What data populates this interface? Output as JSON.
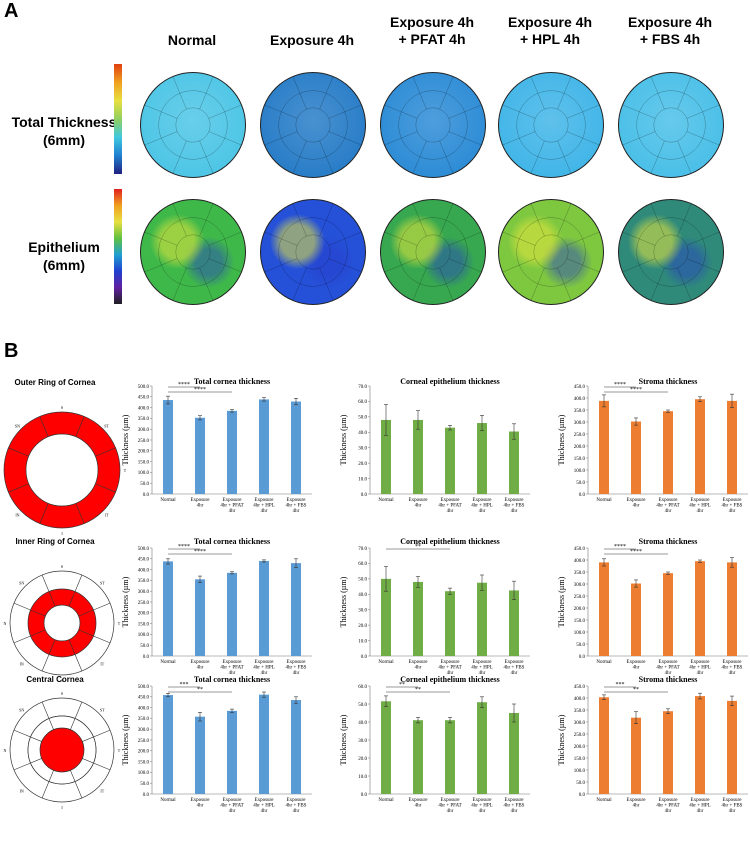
{
  "panel_a": {
    "letter": "A",
    "columns": [
      "Normal",
      "Exposure 4h",
      "Exposure 4h\n+ PFAT 4h",
      "Exposure 4h\n+ HPL 4h",
      "Exposure 4h\n+ FBS 4h"
    ],
    "rows": [
      "Total Thickness\n(6mm)",
      "Epithelium\n(6mm)"
    ],
    "map_colors": {
      "thickness": [
        "#4fc6e6",
        "#2a7ec8",
        "#2f8dd6",
        "#43b6e8",
        "#4cc0e8"
      ],
      "epithelium": [
        "#3fb84a",
        "#2550d8",
        "#37a84f",
        "#7ec840",
        "#2f8a7a"
      ]
    }
  },
  "panel_b": {
    "letter": "B",
    "ring_titles": [
      "Outer Ring of Cornea",
      "Inner Ring of Cornea",
      "Central Cornea"
    ],
    "sector_labels": [
      "S",
      "ST",
      "T",
      "IT",
      "I",
      "IN",
      "N",
      "SN"
    ],
    "colors": {
      "total": "#5b9bd5",
      "epithelium": "#70ad47",
      "stroma": "#ed7d31",
      "fill": "#ff0000"
    }
  },
  "chart_data": [
    {
      "type": "bar",
      "title": "Total cornea thickness",
      "ylabel": "Thickness (µm)",
      "ylim": [
        0,
        500
      ],
      "yticks": [
        "0.0",
        "50.0",
        "100.0",
        "150.0",
        "200.0",
        "250.0",
        "300.0",
        "350.0",
        "400.0",
        "450.0",
        "500.0"
      ],
      "categories": [
        "Normal",
        "Exposure 4hr",
        "Exposure 4hr + PFAT 4hr",
        "Exposure 4hr + HPL 4hr",
        "Exposure 4hr + FBS 4hr"
      ],
      "values": [
        435,
        353,
        385,
        438,
        428
      ],
      "errors": [
        18,
        10,
        6,
        8,
        15
      ],
      "significance": [
        {
          "from": 0,
          "to": 1,
          "label": "****"
        },
        {
          "from": 0,
          "to": 2,
          "label": "****"
        }
      ]
    },
    {
      "type": "bar",
      "title": "Corneal epithelium thickness",
      "ylabel": "Thickness (µm)",
      "ylim": [
        0,
        70
      ],
      "yticks": [
        "0.0",
        "10.0",
        "20.0",
        "30.0",
        "40.0",
        "50.0",
        "60.0",
        "70.0"
      ],
      "categories": [
        "Normal",
        "Exposure 4hr",
        "Exposure 4hr + PFAT 4hr",
        "Exposure 4hr + HPL 4hr",
        "Exposure 4hr + FBS 4hr"
      ],
      "values": [
        48,
        48,
        43,
        46,
        40.5
      ],
      "errors": [
        10,
        6,
        1.5,
        5,
        5
      ],
      "significance": []
    },
    {
      "type": "bar",
      "title": "Stroma thickness",
      "ylabel": "Thickness (µm)",
      "ylim": [
        0,
        450
      ],
      "yticks": [
        "0.0",
        "50.0",
        "100.0",
        "150.0",
        "200.0",
        "250.0",
        "300.0",
        "350.0",
        "400.0",
        "450.0"
      ],
      "categories": [
        "Normal",
        "Exposure 4hr",
        "Exposure 4hr + PFAT 4hr",
        "Exposure 4hr + HPL 4hr",
        "Exposure 4hr + FBS 4hr"
      ],
      "values": [
        388,
        302,
        345,
        395,
        388
      ],
      "errors": [
        25,
        15,
        5,
        10,
        28
      ],
      "significance": [
        {
          "from": 0,
          "to": 1,
          "label": "****"
        },
        {
          "from": 0,
          "to": 2,
          "label": "****"
        }
      ]
    },
    {
      "type": "bar",
      "title": "Total cornea thickness",
      "ylabel": "Thickness (µm)",
      "ylim": [
        0,
        500
      ],
      "yticks": [
        "0.0",
        "50.0",
        "100.0",
        "150.0",
        "200.0",
        "250.0",
        "300.0",
        "350.0",
        "400.0",
        "450.0",
        "500.0"
      ],
      "categories": [
        "Normal",
        "Exposure 4hr",
        "Exposure 4hr + PFAT 4hr",
        "Exposure 4hr + HPL 4hr",
        "Exposure 4hr + FBS 4hr"
      ],
      "values": [
        438,
        355,
        385,
        440,
        430
      ],
      "errors": [
        12,
        15,
        5,
        5,
        20
      ],
      "significance": [
        {
          "from": 0,
          "to": 1,
          "label": "****"
        },
        {
          "from": 0,
          "to": 2,
          "label": "****"
        }
      ]
    },
    {
      "type": "bar",
      "title": "Corneal epithelium thickness",
      "ylabel": "Thickness (µm)",
      "ylim": [
        0,
        70
      ],
      "yticks": [
        "0.0",
        "10.0",
        "20.0",
        "30.0",
        "40.0",
        "50.0",
        "60.0",
        "70.0"
      ],
      "categories": [
        "Normal",
        "Exposure 4hr",
        "Exposure 4hr + PFAT 4hr",
        "Exposure 4hr + HPL 4hr",
        "Exposure 4hr + FBS 4hr"
      ],
      "values": [
        50,
        48,
        42,
        47.5,
        42.5
      ],
      "errors": [
        8,
        3.5,
        2,
        5,
        6
      ],
      "significance": [
        {
          "from": 0,
          "to": 2,
          "label": "**"
        }
      ]
    },
    {
      "type": "bar",
      "title": "Stroma thickness",
      "ylabel": "Thickness (µm)",
      "ylim": [
        0,
        450
      ],
      "yticks": [
        "0.0",
        "50.0",
        "100.0",
        "150.0",
        "200.0",
        "250.0",
        "300.0",
        "350.0",
        "400.0",
        "450.0"
      ],
      "categories": [
        "Normal",
        "Exposure 4hr",
        "Exposure 4hr + PFAT 4hr",
        "Exposure 4hr + HPL 4hr",
        "Exposure 4hr + FBS 4hr"
      ],
      "values": [
        390,
        302,
        345,
        395,
        390
      ],
      "errors": [
        15,
        15,
        5,
        5,
        20
      ],
      "significance": [
        {
          "from": 0,
          "to": 1,
          "label": "****"
        },
        {
          "from": 0,
          "to": 2,
          "label": "****"
        }
      ]
    },
    {
      "type": "bar",
      "title": "Total cornea thickness",
      "ylabel": "Thickness (µm)",
      "ylim": [
        0,
        500
      ],
      "yticks": [
        "0.0",
        "50.0",
        "100.0",
        "150.0",
        "200.0",
        "250.0",
        "300.0",
        "350.0",
        "400.0",
        "450.0",
        "500.0"
      ],
      "categories": [
        "Normal",
        "Exposure 4hr",
        "Exposure 4hr + PFAT 4hr",
        "Exposure 4hr + HPL 4hr",
        "Exposure 4hr + FBS 4hr"
      ],
      "values": [
        458,
        358,
        385,
        460,
        435
      ],
      "errors": [
        8,
        20,
        8,
        12,
        15
      ],
      "significance": [
        {
          "from": 0,
          "to": 1,
          "label": "***"
        },
        {
          "from": 0,
          "to": 2,
          "label": "**"
        }
      ]
    },
    {
      "type": "bar",
      "title": "Corneal epithelium thickness",
      "ylabel": "Thickness (µm)",
      "ylim": [
        0,
        60
      ],
      "yticks": [
        "0.0",
        "10.0",
        "20.0",
        "30.0",
        "40.0",
        "50.0",
        "60.0"
      ],
      "categories": [
        "Normal",
        "Exposure 4hr",
        "Exposure 4hr + PFAT 4hr",
        "Exposure 4hr + HPL 4hr",
        "Exposure 4hr + FBS 4hr"
      ],
      "values": [
        51.5,
        41,
        41,
        51,
        45
      ],
      "errors": [
        3,
        1.5,
        1.5,
        3,
        5
      ],
      "significance": [
        {
          "from": 0,
          "to": 1,
          "label": "**"
        },
        {
          "from": 0,
          "to": 2,
          "label": "**"
        }
      ]
    },
    {
      "type": "bar",
      "title": "Stroma thickness",
      "ylabel": "Thickness (µm)",
      "ylim": [
        0,
        450
      ],
      "yticks": [
        "0.0",
        "50.0",
        "100.0",
        "150.0",
        "200.0",
        "250.0",
        "300.0",
        "350.0",
        "400.0",
        "450.0"
      ],
      "categories": [
        "Normal",
        "Exposure 4hr",
        "Exposure 4hr + PFAT 4hr",
        "Exposure 4hr + HPL 4hr",
        "Exposure 4hr + FBS 4hr"
      ],
      "values": [
        403,
        318,
        345,
        408,
        388
      ],
      "errors": [
        10,
        25,
        10,
        12,
        20
      ],
      "significance": [
        {
          "from": 0,
          "to": 1,
          "label": "***"
        },
        {
          "from": 0,
          "to": 2,
          "label": "**"
        }
      ]
    }
  ]
}
